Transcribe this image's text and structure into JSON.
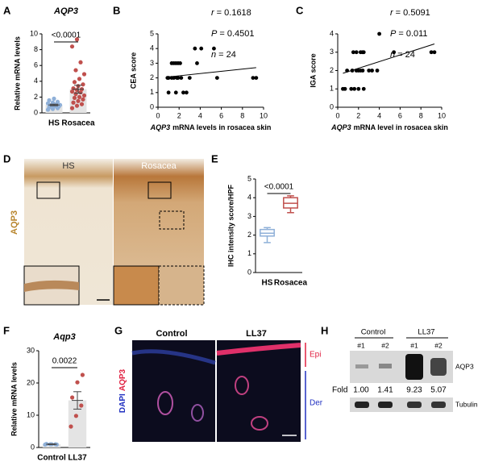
{
  "chart_data": [
    {
      "type": "bar",
      "panel": "A",
      "title": "AQP3",
      "ylabel": "Relative mRNA levels",
      "categories": [
        "HS",
        "Rosacea"
      ],
      "values": [
        1.0,
        3.0
      ],
      "errors": [
        0.1,
        0.5
      ],
      "points": [
        [
          0.4,
          0.5,
          0.6,
          0.7,
          0.8,
          0.8,
          0.9,
          0.9,
          1.0,
          1.0,
          1.1,
          1.2,
          1.3,
          1.4,
          1.6,
          1.8
        ],
        [
          0.6,
          0.9,
          1.1,
          1.3,
          1.5,
          1.7,
          1.9,
          2.0,
          2.2,
          2.4,
          2.6,
          2.7,
          2.9,
          3.0,
          3.1,
          3.4,
          3.6,
          3.9,
          4.3,
          4.9,
          5.4,
          6.4,
          8.4,
          9.3
        ]
      ],
      "colors": [
        "#8fb0d8",
        "#c0504d"
      ],
      "bar_color": "#e4e4e4",
      "ylim": [
        0,
        10
      ],
      "yticks": [
        0,
        2,
        4,
        6,
        8,
        10
      ],
      "annotation": "<0.0001"
    },
    {
      "type": "scatter",
      "panel": "B",
      "ylabel": "CEA score",
      "xlabel": [
        "AQP3",
        "mRNA levels in rosacea skin"
      ],
      "stats": [
        {
          "symbol": "r",
          "text": "= 0.1618"
        },
        {
          "symbol": "P",
          "text": "= 0.4501"
        },
        {
          "symbol": "n",
          "text": "= 24"
        }
      ],
      "x": [
        1.0,
        1.7,
        2.4,
        2.7,
        0.9,
        1.0,
        1.3,
        1.5,
        1.8,
        1.9,
        2.2,
        3.0,
        5.6,
        9.0,
        9.3,
        1.3,
        1.5,
        1.7,
        1.9,
        2.1,
        3.7,
        3.5,
        4.1,
        5.3
      ],
      "y": [
        1,
        1,
        1,
        1,
        2,
        2,
        2,
        2,
        2,
        2,
        2,
        2,
        2,
        2,
        2,
        3,
        3,
        3,
        3,
        3,
        3,
        4,
        4,
        4
      ],
      "fit": {
        "x": [
          0.8,
          9.3
        ],
        "y": [
          2.05,
          2.7
        ]
      },
      "color": "#000000",
      "xlim": [
        0,
        10
      ],
      "ylim": [
        0,
        5
      ],
      "xticks": [
        0,
        2,
        4,
        6,
        8,
        10
      ],
      "yticks": [
        0,
        1,
        2,
        3,
        4,
        5
      ]
    },
    {
      "type": "scatter",
      "panel": "C",
      "ylabel": "IGA score",
      "xlabel": [
        "AQP3",
        "mRNA level in rosacea skin"
      ],
      "stats": [
        {
          "symbol": "r",
          "text": "= 0.5091"
        },
        {
          "symbol": "P",
          "text": "= 0.011"
        },
        {
          "symbol": "n",
          "text": "= 24"
        }
      ],
      "x": [
        0.5,
        0.7,
        1.3,
        1.6,
        2.0,
        2.5,
        0.9,
        1.4,
        1.8,
        2.0,
        2.2,
        2.4,
        3.0,
        3.3,
        3.8,
        1.5,
        1.8,
        2.2,
        2.4,
        2.5,
        5.4,
        9.0,
        9.3,
        4.0
      ],
      "y": [
        1,
        1,
        1,
        1,
        1,
        1,
        2,
        2,
        2,
        2,
        2,
        2,
        2,
        2,
        2,
        3,
        3,
        3,
        3,
        3,
        3,
        3,
        3,
        4
      ],
      "fit": {
        "x": [
          0.5,
          9.3
        ],
        "y": [
          1.85,
          3.45
        ]
      },
      "color": "#000000",
      "xlim": [
        0,
        10
      ],
      "ylim": [
        0,
        4
      ],
      "xticks": [
        0,
        2,
        4,
        6,
        8,
        10
      ],
      "yticks": [
        0,
        1,
        2,
        3,
        4
      ]
    },
    {
      "type": "box",
      "panel": "E",
      "ylabel": "IHC intensity score/HPF",
      "categories": [
        "HS",
        "Rosacea"
      ],
      "boxes": [
        {
          "min": 1.6,
          "q1": 1.95,
          "median": 2.1,
          "q3": 2.3,
          "max": 2.4
        },
        {
          "min": 3.2,
          "q1": 3.45,
          "median": 3.7,
          "q3": 4.0,
          "max": 4.1
        }
      ],
      "colors": [
        "#8fb0d8",
        "#c0504d"
      ],
      "ylim": [
        0,
        5
      ],
      "yticks": [
        0,
        1,
        2,
        3,
        4,
        5
      ],
      "annotation": "<0.0001"
    },
    {
      "type": "bar",
      "panel": "F",
      "title": "Aqp3",
      "ylabel": "Relative mRNA levels",
      "categories": [
        "Control",
        "LL37"
      ],
      "values": [
        1.0,
        14.6
      ],
      "errors": [
        0.1,
        2.7
      ],
      "points": [
        [
          0.9,
          1.0,
          1.0,
          1.1,
          1.0,
          0.9
        ],
        [
          6.5,
          9.8,
          13.0,
          15.5,
          20.2,
          22.5
        ]
      ],
      "colors": [
        "#8fb0d8",
        "#c0504d"
      ],
      "bar_color": "#e4e4e4",
      "ylim": [
        0,
        30
      ],
      "yticks": [
        0,
        10,
        20,
        30
      ],
      "annotation": "0.0022"
    }
  ],
  "figure": {
    "D": {
      "letter": "D",
      "labels": [
        "HS",
        "Rosacea"
      ],
      "stain": "AQP3"
    },
    "G": {
      "letter": "G",
      "labels": [
        "Control",
        "LL37"
      ],
      "stain": [
        "DAPI",
        "AQP3"
      ],
      "layers": [
        "Epi",
        "Der"
      ]
    },
    "H": {
      "letter": "H",
      "groups": [
        "Control",
        "LL37"
      ],
      "lanes": [
        "#1",
        "#2",
        "#1",
        "#2"
      ],
      "fold_label": "Fold",
      "fold": [
        "1.00",
        "1.41",
        "9.23",
        "5.07"
      ],
      "proteins": [
        "AQP3",
        "Tubulin"
      ]
    }
  }
}
